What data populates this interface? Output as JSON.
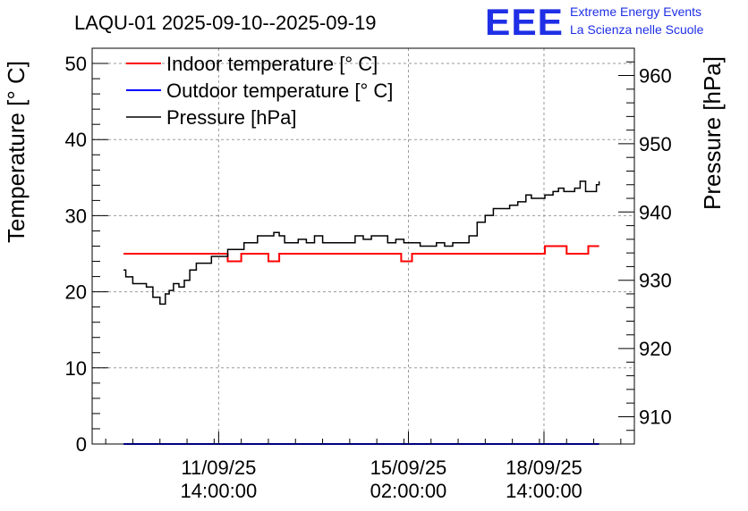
{
  "chart_data": {
    "type": "line",
    "title": "LAQU-01 2025-09-10--2025-09-19",
    "logo": {
      "text": "EEE",
      "line1": "Extreme Energy Events",
      "line2": "La Scienza nelle Scuole",
      "color": "#1f2fe6"
    },
    "ylabel_left": "Temperature [° C]",
    "ylabel_right": "Pressure [hPa]",
    "xlabel": "",
    "ylim_left": [
      0,
      52
    ],
    "ylim_right": [
      906,
      964
    ],
    "xlim_days": [
      0,
      10
    ],
    "grid": true,
    "legend_position": "top-left",
    "x_ticks": [
      {
        "day": 2.333,
        "line1": "11/09/25",
        "line2": "14:00:00"
      },
      {
        "day": 5.833,
        "line1": "15/09/25",
        "line2": "02:00:00"
      },
      {
        "day": 8.333,
        "line1": "18/09/25",
        "line2": "14:00:00"
      }
    ],
    "y_ticks_left": [
      0,
      10,
      20,
      30,
      40,
      50
    ],
    "y_ticks_right": [
      910,
      920,
      930,
      940,
      950,
      960
    ],
    "series": [
      {
        "name": "Indoor temperature [° C]",
        "color": "#ff0000",
        "axis": "left",
        "x": [
          0.58,
          2.17,
          2.17,
          2.5,
          2.5,
          2.75,
          2.75,
          3.25,
          3.25,
          3.45,
          3.45,
          5.7,
          5.7,
          5.9,
          5.9,
          8.35,
          8.35,
          8.75,
          8.75,
          9.15,
          9.15,
          9.35
        ],
        "y": [
          25,
          25,
          25,
          25,
          24,
          24,
          25,
          25,
          24,
          24,
          25,
          25,
          24,
          24,
          25,
          25,
          26,
          26,
          25,
          25,
          26,
          26
        ]
      },
      {
        "name": "Outdoor temperature [° C]",
        "color": "#0000ff",
        "axis": "left",
        "x": [
          0.58,
          9.35
        ],
        "y": [
          0,
          0
        ]
      },
      {
        "name": "Pressure [hPa]",
        "color": "#000000",
        "axis": "right",
        "x": [
          0.58,
          0.62,
          0.68,
          0.75,
          0.85,
          1.0,
          1.12,
          1.25,
          1.35,
          1.42,
          1.5,
          1.6,
          1.7,
          1.8,
          1.92,
          2.05,
          2.2,
          2.35,
          2.5,
          2.65,
          2.8,
          2.95,
          3.05,
          3.2,
          3.35,
          3.45,
          3.55,
          3.65,
          3.8,
          3.95,
          4.1,
          4.25,
          4.4,
          4.55,
          4.7,
          4.85,
          5.0,
          5.15,
          5.3,
          5.45,
          5.6,
          5.75,
          5.9,
          6.05,
          6.2,
          6.35,
          6.5,
          6.65,
          6.8,
          6.95,
          7.1,
          7.25,
          7.4,
          7.55,
          7.7,
          7.85,
          8.0,
          8.1,
          8.2,
          8.35,
          8.5,
          8.6,
          8.7,
          8.8,
          8.9,
          9.0,
          9.1,
          9.2,
          9.3,
          9.35
        ],
        "y": [
          931.5,
          930.5,
          930.5,
          929.5,
          929.5,
          929.0,
          927.5,
          926.5,
          928.0,
          928.5,
          929.5,
          929.0,
          930.0,
          931.5,
          932.5,
          932.5,
          933.5,
          933.5,
          934.5,
          934.5,
          935.5,
          935.5,
          936.5,
          936.5,
          937.0,
          936.5,
          935.5,
          935.5,
          936.0,
          935.5,
          936.5,
          935.5,
          935.5,
          935.5,
          935.5,
          936.5,
          936.0,
          936.5,
          936.5,
          935.5,
          936.0,
          935.5,
          935.5,
          935.0,
          935.0,
          935.5,
          935.0,
          935.5,
          935.5,
          936.5,
          938.5,
          939.5,
          940.5,
          940.5,
          941.0,
          941.5,
          942.5,
          942.0,
          942.0,
          942.5,
          943.0,
          943.5,
          943.0,
          943.0,
          943.5,
          944.5,
          943.0,
          943.0,
          944.0,
          944.5
        ]
      }
    ]
  }
}
